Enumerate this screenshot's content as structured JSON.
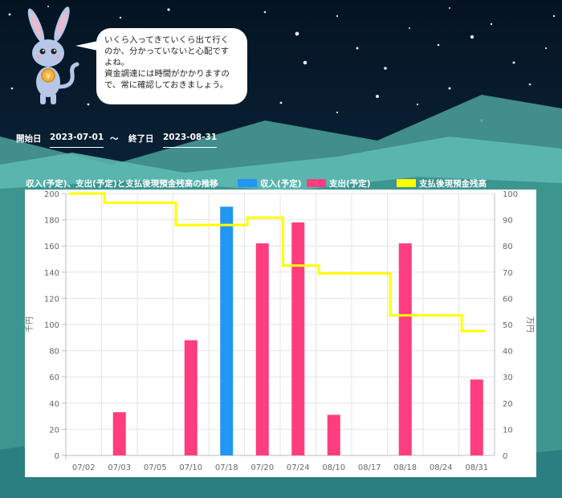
{
  "mascot_message": [
    "いくら入ってきていくら出て行く",
    "のか、分かっていないと心配です",
    "よね。",
    "資金調達には時間がかかりますの",
    "で、常に確認しておきましょう。"
  ],
  "date_range": {
    "start_label": "開始日",
    "start_value": "2023-07-01",
    "separator": "～",
    "end_label": "終了日",
    "end_value": "2023-08-31"
  },
  "chart_title": "収入(予定)、支出(予定)と支払後現預金残高の推移",
  "legend": [
    {
      "label": "収入(予定)",
      "color": "#2196f3"
    },
    {
      "label": "支出(予定)",
      "color": "#ff3d7f"
    },
    {
      "label": "支払後現預金残高",
      "color": "#ffff00"
    }
  ],
  "chart_data": {
    "type": "bar",
    "categories": [
      "07/02",
      "07/03",
      "07/05",
      "07/10",
      "07/18",
      "07/20",
      "07/24",
      "08/10",
      "08/17",
      "08/18",
      "08/24",
      "08/31"
    ],
    "series": [
      {
        "name": "収入(予定)",
        "type": "bar",
        "axis": "left",
        "values": [
          0,
          0,
          0,
          0,
          190,
          0,
          0,
          0,
          0,
          0,
          0,
          0
        ]
      },
      {
        "name": "支出(予定)",
        "type": "bar",
        "axis": "left",
        "values": [
          0,
          33,
          0,
          88,
          0,
          162,
          178,
          31,
          0,
          162,
          0,
          58
        ]
      },
      {
        "name": "支払後現預金残高",
        "type": "step-line",
        "axis": "right",
        "values": [
          100,
          96.5,
          96.5,
          88,
          88,
          90.8,
          72.5,
          69.5,
          69.5,
          53.5,
          53.5,
          47.5
        ]
      }
    ],
    "ylabel": "千円",
    "y2label": "万円",
    "ylim": [
      0,
      200
    ],
    "y2lim": [
      0,
      100
    ],
    "yticks": [
      0,
      20,
      40,
      60,
      80,
      100,
      120,
      140,
      160,
      180,
      200
    ],
    "y2ticks": [
      0,
      10,
      20,
      30,
      40,
      50,
      60,
      70,
      80,
      90,
      100
    ],
    "grid": true
  }
}
